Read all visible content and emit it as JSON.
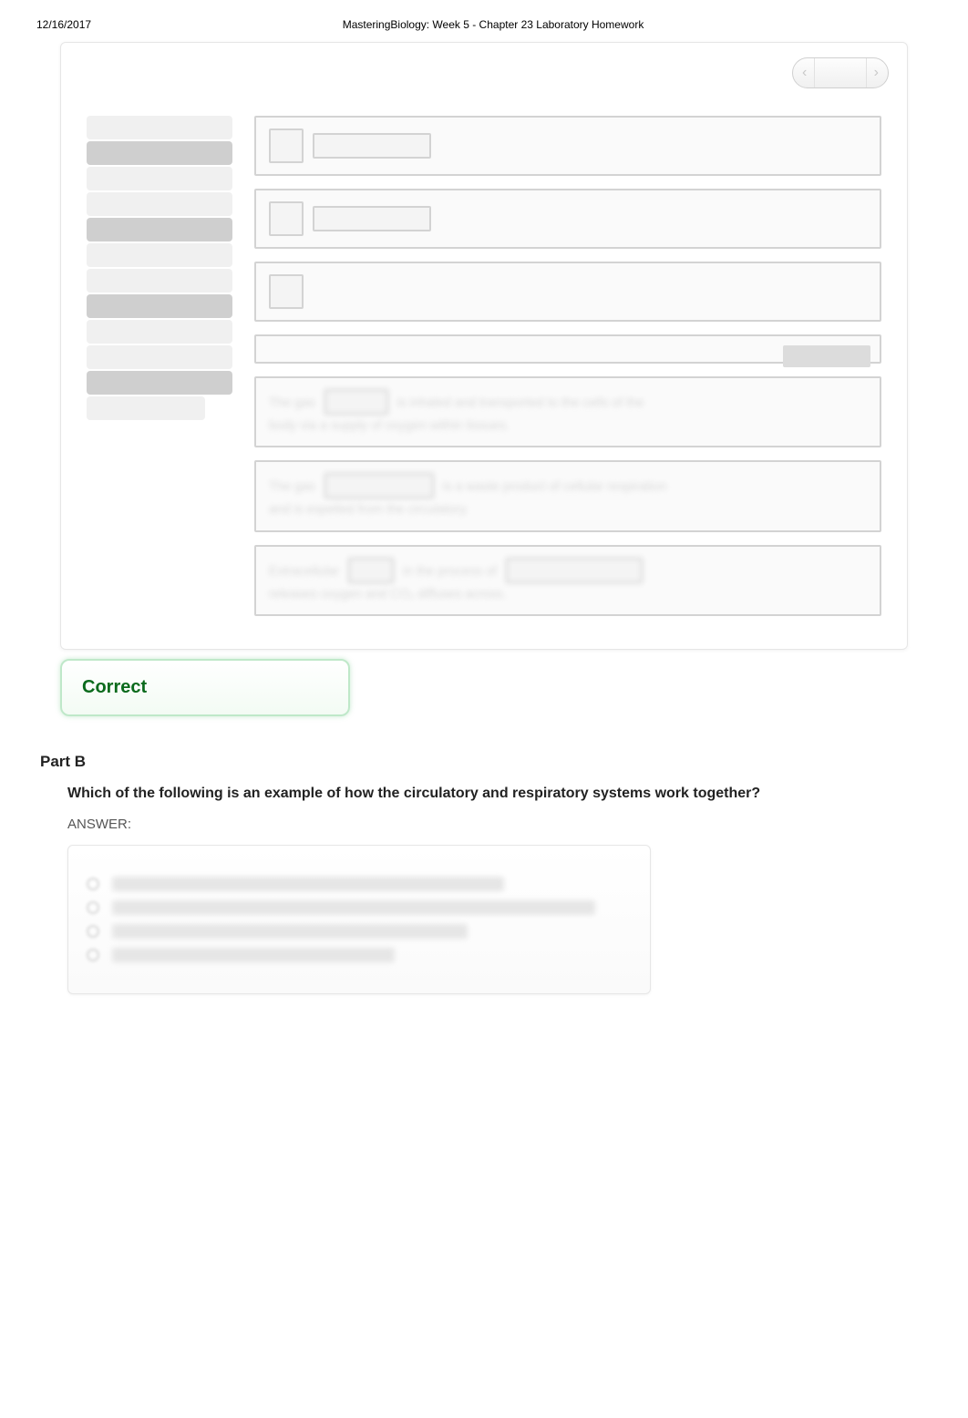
{
  "header": {
    "date": "12/16/2017",
    "title": "MasteringBiology: Week 5 - Chapter 23 Laboratory Homework"
  },
  "pager": {
    "prev_glyph": "‹",
    "next_glyph": "›"
  },
  "feedback": {
    "label": "Correct"
  },
  "section": {
    "part_label": "Part B",
    "question": "Which of the following is an example of how the circulatory and respiratory systems work together?",
    "answer_label": "ANSWER:"
  },
  "choices": {
    "widths": [
      430,
      530,
      390,
      310
    ]
  },
  "colors": {
    "correct_text": "#0a6a1c",
    "blur_gray": "#e6e6e6"
  }
}
